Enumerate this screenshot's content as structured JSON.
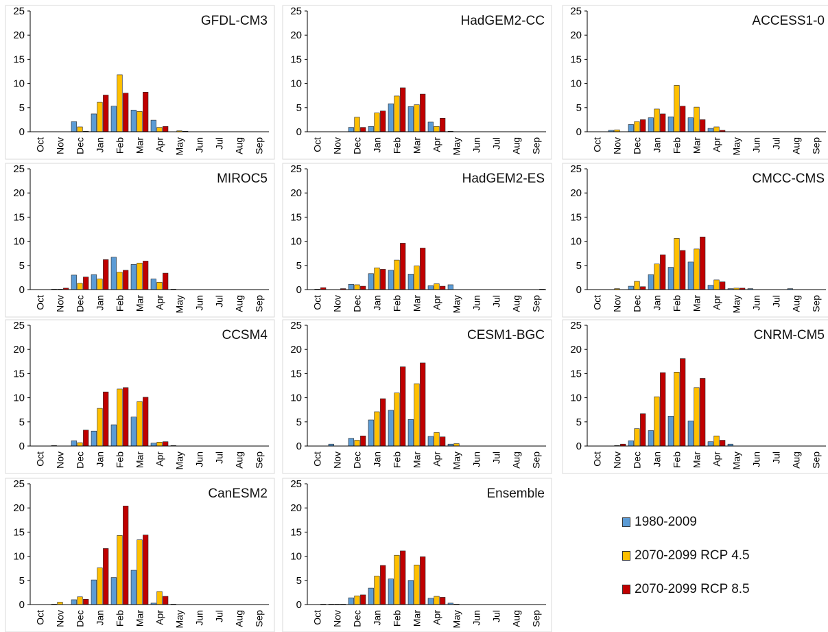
{
  "series_names": [
    "1980-2009",
    "2070-2099 RCP 4.5",
    "2070-2099 RCP 8.5"
  ],
  "colors": [
    "#5b9bd5",
    "#ffc000",
    "#c00000"
  ],
  "chart_data": [
    {
      "type": "bar",
      "title": "GFDL-CM3",
      "categories": [
        "Oct",
        "Nov",
        "Dec",
        "Jan",
        "Feb",
        "Mar",
        "Apr",
        "May",
        "Jun",
        "Jul",
        "Aug",
        "Sep"
      ],
      "ylim": [
        0,
        25
      ],
      "yticks": [
        0,
        5,
        10,
        15,
        20,
        25
      ],
      "series": [
        {
          "name": "1980-2009",
          "values": [
            0,
            0,
            2.1,
            3.7,
            5.3,
            4.5,
            2.4,
            0,
            0,
            0,
            0,
            0
          ]
        },
        {
          "name": "2070-2099 RCP 4.5",
          "values": [
            0,
            0,
            1,
            6.1,
            11.8,
            4.2,
            0.9,
            0.2,
            0,
            0,
            0,
            0
          ]
        },
        {
          "name": "2070-2099 RCP 8.5",
          "values": [
            0,
            0,
            0.1,
            7.6,
            8,
            8.2,
            1.1,
            0.1,
            0,
            0,
            0,
            0
          ]
        }
      ]
    },
    {
      "type": "bar",
      "title": "HadGEM2-CC",
      "categories": [
        "Oct",
        "Nov",
        "Dec",
        "Jan",
        "Feb",
        "Mar",
        "Apr",
        "May",
        "Jun",
        "Jul",
        "Aug",
        "Sep"
      ],
      "ylim": [
        0,
        25
      ],
      "yticks": [
        0,
        5,
        10,
        15,
        20,
        25
      ],
      "series": [
        {
          "name": "1980-2009",
          "values": [
            0,
            0,
            0.9,
            1.1,
            5.8,
            5.2,
            2,
            0.1,
            0,
            0,
            0,
            0
          ]
        },
        {
          "name": "2070-2099 RCP 4.5",
          "values": [
            0,
            0,
            3,
            3.9,
            7.4,
            5.6,
            1.1,
            0,
            0,
            0,
            0,
            0
          ]
        },
        {
          "name": "2070-2099 RCP 8.5",
          "values": [
            0,
            0,
            0.9,
            4.3,
            9.1,
            7.8,
            2.8,
            0,
            0,
            0,
            0,
            0
          ]
        }
      ]
    },
    {
      "type": "bar",
      "title": "ACCESS1-0",
      "categories": [
        "Oct",
        "Nov",
        "Dec",
        "Jan",
        "Feb",
        "Mar",
        "Apr",
        "May",
        "Jun",
        "Jul",
        "Aug",
        "Sep"
      ],
      "ylim": [
        0,
        25
      ],
      "yticks": [
        0,
        5,
        10,
        15,
        20,
        25
      ],
      "series": [
        {
          "name": "1980-2009",
          "values": [
            0,
            0.3,
            1.5,
            2.9,
            3.1,
            2.9,
            0.7,
            0,
            0,
            0,
            0,
            0
          ]
        },
        {
          "name": "2070-2099 RCP 4.5",
          "values": [
            0,
            0.4,
            2.1,
            4.7,
            9.6,
            5.1,
            1,
            0,
            0,
            0,
            0,
            0
          ]
        },
        {
          "name": "2070-2099 RCP 8.5",
          "values": [
            0,
            0,
            2.5,
            3.7,
            5.3,
            2.5,
            0.3,
            0,
            0,
            0,
            0,
            0
          ]
        }
      ]
    },
    {
      "type": "bar",
      "title": "MIROC5",
      "categories": [
        "Oct",
        "Nov",
        "Dec",
        "Jan",
        "Feb",
        "Mar",
        "Apr",
        "May",
        "Jun",
        "Jul",
        "Aug",
        "Sep"
      ],
      "ylim": [
        0,
        25
      ],
      "yticks": [
        0,
        5,
        10,
        15,
        20,
        25
      ],
      "series": [
        {
          "name": "1980-2009",
          "values": [
            0,
            0.1,
            3,
            3.1,
            6.7,
            5.2,
            2.2,
            0.1,
            0,
            0,
            0,
            0
          ]
        },
        {
          "name": "2070-2099 RCP 4.5",
          "values": [
            0,
            0.1,
            1.3,
            2.2,
            3.6,
            5.5,
            1.5,
            0,
            0,
            0,
            0,
            0
          ]
        },
        {
          "name": "2070-2099 RCP 8.5",
          "values": [
            0,
            0.3,
            2.6,
            6.2,
            4,
            5.9,
            3.4,
            0,
            0,
            0,
            0,
            0
          ]
        }
      ]
    },
    {
      "type": "bar",
      "title": "HadGEM2-ES",
      "categories": [
        "Oct",
        "Nov",
        "Dec",
        "Jan",
        "Feb",
        "Mar",
        "Apr",
        "May",
        "Jun",
        "Jul",
        "Aug",
        "Sep"
      ],
      "ylim": [
        0,
        25
      ],
      "yticks": [
        0,
        5,
        10,
        15,
        20,
        25
      ],
      "series": [
        {
          "name": "1980-2009",
          "values": [
            0,
            0,
            1.1,
            3.3,
            4,
            3.2,
            0.8,
            1,
            0,
            0,
            0,
            0
          ]
        },
        {
          "name": "2070-2099 RCP 4.5",
          "values": [
            0.1,
            0,
            1,
            4.5,
            6.1,
            4.9,
            1.2,
            0,
            0,
            0,
            0,
            0
          ]
        },
        {
          "name": "2070-2099 RCP 8.5",
          "values": [
            0.4,
            0.2,
            0.7,
            4.2,
            9.6,
            8.6,
            0.7,
            0,
            0,
            0,
            0,
            0.1
          ]
        }
      ]
    },
    {
      "type": "bar",
      "title": "CMCC-CMS",
      "categories": [
        "Oct",
        "Nov",
        "Dec",
        "Jan",
        "Feb",
        "Mar",
        "Apr",
        "May",
        "Jun",
        "Jul",
        "Aug",
        "Sep"
      ],
      "ylim": [
        0,
        25
      ],
      "yticks": [
        0,
        5,
        10,
        15,
        20,
        25
      ],
      "series": [
        {
          "name": "1980-2009",
          "values": [
            0,
            0,
            0.7,
            3.1,
            4.6,
            5.7,
            0.9,
            0.2,
            0.2,
            0,
            0.2,
            0
          ]
        },
        {
          "name": "2070-2099 RCP 4.5",
          "values": [
            0,
            0.2,
            1.7,
            5.3,
            10.6,
            8.4,
            2,
            0.3,
            0,
            0,
            0,
            0
          ]
        },
        {
          "name": "2070-2099 RCP 8.5",
          "values": [
            0,
            0,
            0.6,
            7.2,
            8.1,
            10.9,
            1.6,
            0.3,
            0,
            0,
            0,
            0
          ]
        }
      ]
    },
    {
      "type": "bar",
      "title": "CCSM4",
      "categories": [
        "Oct",
        "Nov",
        "Dec",
        "Jan",
        "Feb",
        "Mar",
        "Apr",
        "May",
        "Jun",
        "Jul",
        "Aug",
        "Sep"
      ],
      "ylim": [
        0,
        25
      ],
      "yticks": [
        0,
        5,
        10,
        15,
        20,
        25
      ],
      "series": [
        {
          "name": "1980-2009",
          "values": [
            0,
            0.1,
            1.1,
            3.1,
            4.4,
            6,
            0.6,
            0.1,
            0,
            0,
            0,
            0
          ]
        },
        {
          "name": "2070-2099 RCP 4.5",
          "values": [
            0,
            0,
            0.7,
            7.8,
            11.8,
            9.2,
            0.8,
            0,
            0,
            0,
            0,
            0
          ]
        },
        {
          "name": "2070-2099 RCP 8.5",
          "values": [
            0,
            0,
            3.3,
            11.2,
            12.1,
            10.1,
            0.9,
            0,
            0,
            0,
            0,
            0
          ]
        }
      ]
    },
    {
      "type": "bar",
      "title": "CESM1-BGC",
      "categories": [
        "Oct",
        "Nov",
        "Dec",
        "Jan",
        "Feb",
        "Mar",
        "Apr",
        "May",
        "Jun",
        "Jul",
        "Aug",
        "Sep"
      ],
      "ylim": [
        0,
        25
      ],
      "yticks": [
        0,
        5,
        10,
        15,
        20,
        25
      ],
      "series": [
        {
          "name": "1980-2009",
          "values": [
            0,
            0.4,
            1.6,
            5.4,
            7.4,
            5.5,
            2,
            0.4,
            0,
            0,
            0,
            0
          ]
        },
        {
          "name": "2070-2099 RCP 4.5",
          "values": [
            0,
            0,
            1.2,
            7.1,
            11,
            12.9,
            2.8,
            0.5,
            0,
            0,
            0,
            0
          ]
        },
        {
          "name": "2070-2099 RCP 8.5",
          "values": [
            0,
            0,
            2.1,
            9.8,
            16.4,
            17.2,
            1.9,
            0,
            0,
            0,
            0,
            0
          ]
        }
      ]
    },
    {
      "type": "bar",
      "title": "CNRM-CM5",
      "categories": [
        "Oct",
        "Nov",
        "Dec",
        "Jan",
        "Feb",
        "Mar",
        "Apr",
        "May",
        "Jun",
        "Jul",
        "Aug",
        "Sep"
      ],
      "ylim": [
        0,
        25
      ],
      "yticks": [
        0,
        5,
        10,
        15,
        20,
        25
      ],
      "series": [
        {
          "name": "1980-2009",
          "values": [
            0,
            0,
            1.1,
            3.2,
            6.2,
            5.2,
            0.9,
            0.4,
            0,
            0,
            0,
            0
          ]
        },
        {
          "name": "2070-2099 RCP 4.5",
          "values": [
            0,
            0.1,
            3.6,
            10.2,
            15.3,
            12.1,
            2.1,
            0,
            0,
            0,
            0,
            0
          ]
        },
        {
          "name": "2070-2099 RCP 8.5",
          "values": [
            0,
            0.4,
            6.7,
            15.2,
            18.1,
            14,
            1.2,
            0,
            0,
            0,
            0,
            0
          ]
        }
      ]
    },
    {
      "type": "bar",
      "title": "CanESM2",
      "categories": [
        "Oct",
        "Nov",
        "Dec",
        "Jan",
        "Feb",
        "Mar",
        "Apr",
        "May",
        "Jun",
        "Jul",
        "Aug",
        "Sep"
      ],
      "ylim": [
        0,
        25
      ],
      "yticks": [
        0,
        5,
        10,
        15,
        20,
        25
      ],
      "series": [
        {
          "name": "1980-2009",
          "values": [
            0,
            0.1,
            1,
            5.1,
            5.6,
            7.1,
            0.3,
            0.1,
            0,
            0,
            0,
            0
          ]
        },
        {
          "name": "2070-2099 RCP 4.5",
          "values": [
            0,
            0.5,
            1.6,
            7.6,
            14.3,
            13.4,
            2.7,
            0,
            0,
            0,
            0,
            0
          ]
        },
        {
          "name": "2070-2099 RCP 8.5",
          "values": [
            0,
            0,
            1.1,
            11.6,
            20.4,
            14.4,
            1.7,
            0,
            0,
            0,
            0,
            0
          ]
        }
      ]
    },
    {
      "type": "bar",
      "title": "Ensemble",
      "categories": [
        "Oct",
        "Nov",
        "Dec",
        "Jan",
        "Feb",
        "Mar",
        "Apr",
        "May",
        "Jun",
        "Jul",
        "Aug",
        "Sep"
      ],
      "ylim": [
        0,
        25
      ],
      "yticks": [
        0,
        5,
        10,
        15,
        20,
        25
      ],
      "series": [
        {
          "name": "1980-2009",
          "values": [
            0,
            0.1,
            1.4,
            3.4,
            5.3,
            5,
            1.3,
            0.3,
            0,
            0,
            0,
            0
          ]
        },
        {
          "name": "2070-2099 RCP 4.5",
          "values": [
            0,
            0.1,
            1.8,
            5.9,
            10.2,
            8.2,
            1.7,
            0.1,
            0,
            0,
            0,
            0
          ]
        },
        {
          "name": "2070-2099 RCP 8.5",
          "values": [
            0.1,
            0.1,
            2,
            8.1,
            11.1,
            9.9,
            1.5,
            0,
            0,
            0,
            0,
            0
          ]
        }
      ]
    }
  ]
}
